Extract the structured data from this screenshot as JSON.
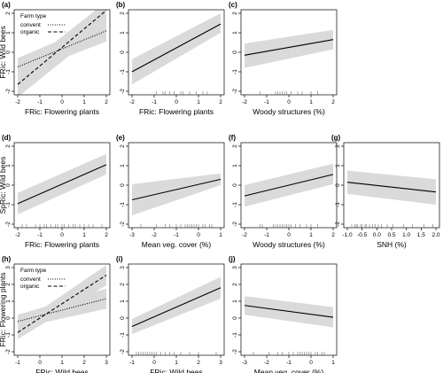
{
  "colors": {
    "band": "#dadada",
    "line": "#000000",
    "rug": "#555555"
  },
  "chart_data": [
    {
      "type": "line",
      "panel_label": "(a)",
      "xlabel": "FRic: Flowering plants",
      "ylabel": "FRic: Wild bees",
      "xlim": [
        -2,
        2
      ],
      "ylim": [
        -2,
        2
      ],
      "xticks": [
        -2,
        -1,
        0,
        1,
        2
      ],
      "yticks": [
        -2,
        -1,
        0,
        1,
        2
      ],
      "legend": {
        "title": "Farm type",
        "position": "top-left",
        "entries": [
          "convent",
          "organic"
        ]
      },
      "series": [
        {
          "name": "convent",
          "dash": "dotted",
          "x": [
            -2,
            2
          ],
          "y": [
            -0.75,
            1.1
          ],
          "band_lower": [
            -1.2,
            0.55
          ],
          "band_upper": [
            -0.3,
            1.65
          ]
        },
        {
          "name": "organic",
          "dash": "dashed",
          "x": [
            -2,
            2
          ],
          "y": [
            -1.65,
            2.15
          ],
          "band_lower": [
            -2.3,
            1.35
          ],
          "band_upper": [
            -1.0,
            2.6
          ]
        }
      ],
      "rug": []
    },
    {
      "type": "line",
      "panel_label": "(b)",
      "xlabel": "FRic: Flowering plants",
      "ylabel": "",
      "xlim": [
        -2,
        2
      ],
      "ylim": [
        -2,
        2
      ],
      "xticks": [
        -2,
        -1,
        0,
        1,
        2
      ],
      "yticks": [
        -2,
        -1,
        0,
        1,
        2
      ],
      "series": [
        {
          "x": [
            -2,
            2
          ],
          "y": [
            -1.0,
            1.45
          ],
          "band_lower": [
            -1.65,
            1.0
          ],
          "band_upper": [
            -0.35,
            2.0
          ]
        }
      ],
      "rug": [
        -0.9,
        -0.6,
        -0.5,
        -0.3,
        -0.1,
        0.2,
        0.3,
        0.6,
        0.9,
        1.2,
        1.4
      ]
    },
    {
      "type": "line",
      "panel_label": "(c)",
      "xlabel": "Woody structures (%)",
      "ylabel": "",
      "xlim": [
        -2,
        2
      ],
      "ylim": [
        -2,
        2
      ],
      "xticks": [
        -2,
        -1,
        0,
        1,
        2
      ],
      "yticks": [
        -2,
        -1,
        0,
        1,
        2
      ],
      "series": [
        {
          "x": [
            -2,
            2
          ],
          "y": [
            -0.15,
            0.65
          ],
          "band_lower": [
            -0.8,
            0.15
          ],
          "band_upper": [
            0.45,
            1.15
          ]
        }
      ],
      "rug": [
        -1.3,
        -0.6,
        -0.5,
        -0.4,
        -0.3,
        -0.2,
        -0.1,
        0.1,
        0.4,
        0.6,
        1.0,
        1.3
      ]
    },
    {
      "type": "line",
      "panel_label": "(d)",
      "xlabel": "FRic: Flowering plants",
      "ylabel": "SpRic: Wild bees",
      "xlim": [
        -2,
        2
      ],
      "ylim": [
        -2,
        2
      ],
      "xticks": [
        -2,
        -1,
        0,
        1,
        2
      ],
      "yticks": [
        -2,
        -1,
        0,
        1,
        2
      ],
      "series": [
        {
          "x": [
            -2,
            2
          ],
          "y": [
            -0.95,
            1.05
          ],
          "band_lower": [
            -1.5,
            0.55
          ],
          "band_upper": [
            -0.4,
            1.6
          ]
        }
      ],
      "rug": [
        -1.8,
        -1.6,
        -1.2,
        -1.0,
        -0.8,
        -0.7,
        -0.5,
        -0.3,
        -0.2,
        0.0,
        0.1,
        0.3,
        0.5,
        0.6,
        0.8,
        1.0,
        1.2,
        1.4,
        1.8
      ]
    },
    {
      "type": "line",
      "panel_label": "(e)",
      "xlabel": "Mean veg. cover (%)",
      "ylabel": "",
      "xlim": [
        -3,
        1
      ],
      "ylim": [
        -2,
        2
      ],
      "xticks": [
        -3,
        -2,
        -1,
        0,
        1
      ],
      "yticks": [
        -2,
        -1,
        0,
        1,
        2
      ],
      "series": [
        {
          "x": [
            -3,
            1
          ],
          "y": [
            -0.75,
            0.3
          ],
          "band_lower": [
            -1.55,
            0.0
          ],
          "band_upper": [
            0.05,
            0.6
          ]
        }
      ],
      "rug": [
        -2.6,
        -1.9,
        -1.5,
        -1.3,
        -1.0,
        -0.8,
        -0.6,
        -0.5,
        -0.4,
        -0.3,
        -0.2,
        -0.1,
        0.0,
        0.2,
        0.3,
        0.5,
        0.6
      ]
    },
    {
      "type": "line",
      "panel_label": "(f)",
      "xlabel": "Woody structures (%)",
      "ylabel": "",
      "xlim": [
        -2,
        2
      ],
      "ylim": [
        -2,
        2
      ],
      "xticks": [
        -2,
        -1,
        0,
        1,
        2
      ],
      "yticks": [
        -2,
        -1,
        0,
        1,
        2
      ],
      "series": [
        {
          "x": [
            -2,
            2
          ],
          "y": [
            -0.55,
            0.55
          ],
          "band_lower": [
            -1.1,
            0.05
          ],
          "band_upper": [
            0.0,
            1.1
          ]
        }
      ],
      "rug": [
        -1.3,
        -1.2,
        -0.7,
        -0.6,
        -0.5,
        -0.4,
        -0.3,
        -0.2,
        -0.1,
        0.0,
        0.1,
        0.3,
        0.5,
        0.8,
        1.0,
        1.3
      ]
    },
    {
      "type": "line",
      "panel_label": "(g)",
      "xlabel": "SNH (%)",
      "ylabel": "",
      "xlim": [
        -1,
        2
      ],
      "ylim": [
        -2,
        2
      ],
      "xticks": [
        -1.0,
        -0.5,
        0.0,
        0.5,
        1.0,
        1.5,
        2.0
      ],
      "yticks": [
        -2,
        -1,
        0,
        1,
        2
      ],
      "series": [
        {
          "x": [
            -1,
            2
          ],
          "y": [
            0.15,
            -0.35
          ],
          "band_lower": [
            -0.45,
            -1.0
          ],
          "band_upper": [
            0.75,
            0.3
          ]
        }
      ],
      "rug": [
        -0.85,
        -0.75,
        -0.7,
        -0.65,
        -0.55,
        -0.5,
        -0.4,
        -0.35,
        -0.25,
        -0.15,
        -0.05,
        0.05,
        0.15,
        0.35,
        0.55,
        0.9,
        1.2,
        1.6,
        1.9
      ]
    },
    {
      "type": "line",
      "panel_label": "(h)",
      "xlabel": "FRic: Wild bees",
      "ylabel": "FRic: Flowering plants",
      "xlim": [
        -1,
        3
      ],
      "ylim": [
        -2,
        3
      ],
      "xticks": [
        -1,
        0,
        1,
        2,
        3
      ],
      "yticks": [
        -2,
        -1,
        0,
        1,
        2,
        3
      ],
      "legend": {
        "title": "Farm type",
        "position": "top-left",
        "entries": [
          "convent",
          "organic"
        ]
      },
      "series": [
        {
          "name": "convent",
          "dash": "dotted",
          "x": [
            -1,
            3
          ],
          "y": [
            -0.2,
            1.15
          ],
          "band_lower": [
            -0.6,
            0.55
          ],
          "band_upper": [
            0.2,
            1.75
          ]
        },
        {
          "name": "organic",
          "dash": "dashed",
          "x": [
            -1,
            3
          ],
          "y": [
            -0.85,
            2.55
          ],
          "band_lower": [
            -1.25,
            1.95
          ],
          "band_upper": [
            -0.45,
            3.15
          ]
        }
      ],
      "rug": []
    },
    {
      "type": "line",
      "panel_label": "(i)",
      "xlabel": "FRic: Wild bees",
      "ylabel": "",
      "xlim": [
        -1,
        3
      ],
      "ylim": [
        -2,
        3
      ],
      "xticks": [
        -1,
        0,
        1,
        2,
        3
      ],
      "yticks": [
        -2,
        -1,
        0,
        1,
        2,
        3
      ],
      "series": [
        {
          "x": [
            -1,
            3
          ],
          "y": [
            -0.5,
            1.8
          ],
          "band_lower": [
            -0.95,
            1.15
          ],
          "band_upper": [
            -0.05,
            2.45
          ]
        }
      ],
      "rug": [
        -0.8,
        -0.7,
        -0.6,
        -0.5,
        -0.4,
        -0.3,
        -0.2,
        -0.1,
        0.0,
        0.1,
        0.3,
        0.5,
        0.7,
        0.9,
        1.2,
        1.6,
        2.0,
        2.8
      ]
    },
    {
      "type": "line",
      "panel_label": "(j)",
      "xlabel": "Mean veg. cover (%)",
      "ylabel": "",
      "xlim": [
        -3,
        1
      ],
      "ylim": [
        -2,
        3
      ],
      "xticks": [
        -3,
        -2,
        -1,
        0,
        1
      ],
      "yticks": [
        -2,
        -1,
        0,
        1,
        2,
        3
      ],
      "series": [
        {
          "x": [
            -3,
            1
          ],
          "y": [
            0.75,
            0.05
          ],
          "band_lower": [
            0.2,
            -0.55
          ],
          "band_upper": [
            1.3,
            0.65
          ]
        }
      ],
      "rug": [
        -2.6,
        -1.9,
        -1.5,
        -1.3,
        -1.0,
        -0.8,
        -0.6,
        -0.5,
        -0.4,
        -0.3,
        -0.2,
        -0.1,
        0.0,
        0.2,
        0.3,
        0.5,
        0.6
      ]
    }
  ]
}
